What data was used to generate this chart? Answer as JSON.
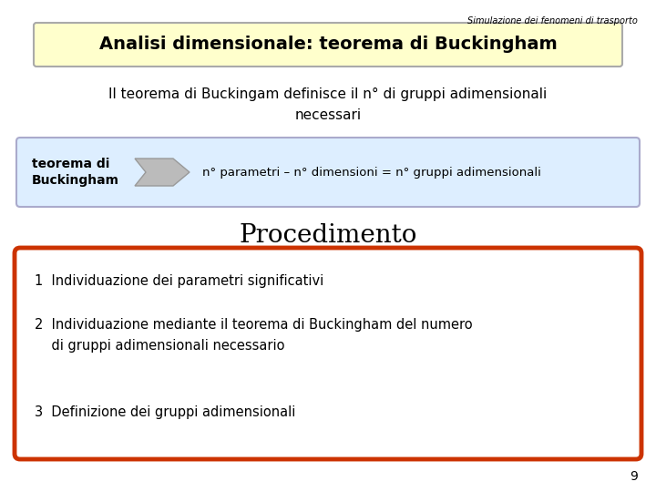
{
  "bg_color": "#ffffff",
  "slide_title_small": "Simulazione dei fenomeni di trasporto",
  "title_box_text": "Analisi dimensionale: teorema di Buckingham",
  "title_box_bg": "#ffffcc",
  "title_box_border": "#aaaaaa",
  "body_text1": "Il teorema di Buckingam definisce il n° di gruppi adimensionali\nnecessari",
  "buckingham_box_text_left": "teorema di\nBuckingham",
  "buckingham_box_text_right": "n° parametri – n° dimensioni = n° gruppi adimensionali",
  "buckingham_box_bg": "#ddeeff",
  "buckingham_box_border": "#aaaacc",
  "arrow_fill": "#bbbbbb",
  "arrow_edge": "#999999",
  "procedimento_title": "Procedimento",
  "step1": "1  Individuazione dei parametri significativi",
  "step2": "2  Individuazione mediante il teorema di Buckingham del numero\n    di gruppi adimensionali necessario",
  "step3": "3  Definizione dei gruppi adimensionali",
  "steps_box_bg": "#ffffff",
  "steps_box_border": "#cc3300",
  "page_number": "9",
  "small_fontsize": 7
}
